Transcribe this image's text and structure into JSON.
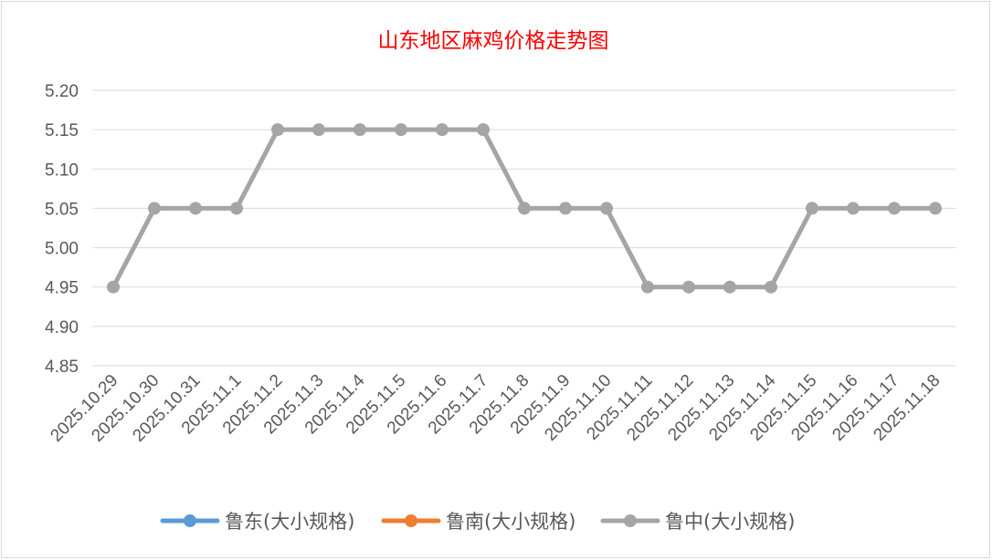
{
  "chart_data": {
    "type": "line",
    "title": "山东地区麻鸡价格走势图",
    "title_color": "#FF0000",
    "categories": [
      "2025.10.29",
      "2025.10.30",
      "2025.10.31",
      "2025.11.1",
      "2025.11.2",
      "2025.11.3",
      "2025.11.4",
      "2025.11.5",
      "2025.11.6",
      "2025.11.7",
      "2025.11.8",
      "2025.11.9",
      "2025.11.10",
      "2025.11.11",
      "2025.11.12",
      "2025.11.13",
      "2025.11.14",
      "2025.11.15",
      "2025.11.16",
      "2025.11.17",
      "2025.11.18"
    ],
    "ylim": [
      4.85,
      5.2
    ],
    "yticks": [
      "4.85",
      "4.90",
      "4.95",
      "5.00",
      "5.05",
      "5.10",
      "5.15",
      "5.20"
    ],
    "grid": true,
    "legend_position": "bottom",
    "series": [
      {
        "name": "鲁东(大小规格)",
        "color": "#5B9BD5",
        "values": null
      },
      {
        "name": "鲁南(大小规格)",
        "color": "#ED7D31",
        "values": null
      },
      {
        "name": "鲁中(大小规格)",
        "color": "#A5A5A5",
        "values": [
          4.95,
          5.05,
          5.05,
          5.05,
          5.15,
          5.15,
          5.15,
          5.15,
          5.15,
          5.15,
          5.05,
          5.05,
          5.05,
          4.95,
          4.95,
          4.95,
          4.95,
          5.05,
          5.05,
          5.05,
          5.05
        ]
      }
    ]
  }
}
